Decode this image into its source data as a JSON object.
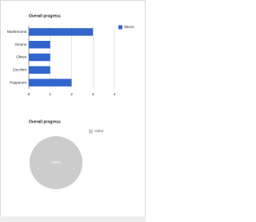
{
  "chart_data": [
    {
      "type": "bar",
      "orientation": "horizontal",
      "title": "Overall progress",
      "categories": [
        "Mushrooms",
        "Onions",
        "Olives",
        "Zucchini",
        "Pepperoni"
      ],
      "series": [
        {
          "name": "Slices",
          "color": "#3366cc",
          "values": [
            3,
            1,
            1,
            1,
            2
          ]
        }
      ],
      "xlim": [
        0,
        4
      ],
      "xticks": [
        0,
        1,
        2,
        3,
        4
      ],
      "grid": true,
      "legend": "right"
    },
    {
      "type": "pie",
      "title": "Overall progress",
      "categories": [
        "Other"
      ],
      "values": [
        100
      ],
      "value_labels": [
        "100%"
      ],
      "colors": [
        "#cccccc"
      ],
      "legend": "right"
    }
  ]
}
